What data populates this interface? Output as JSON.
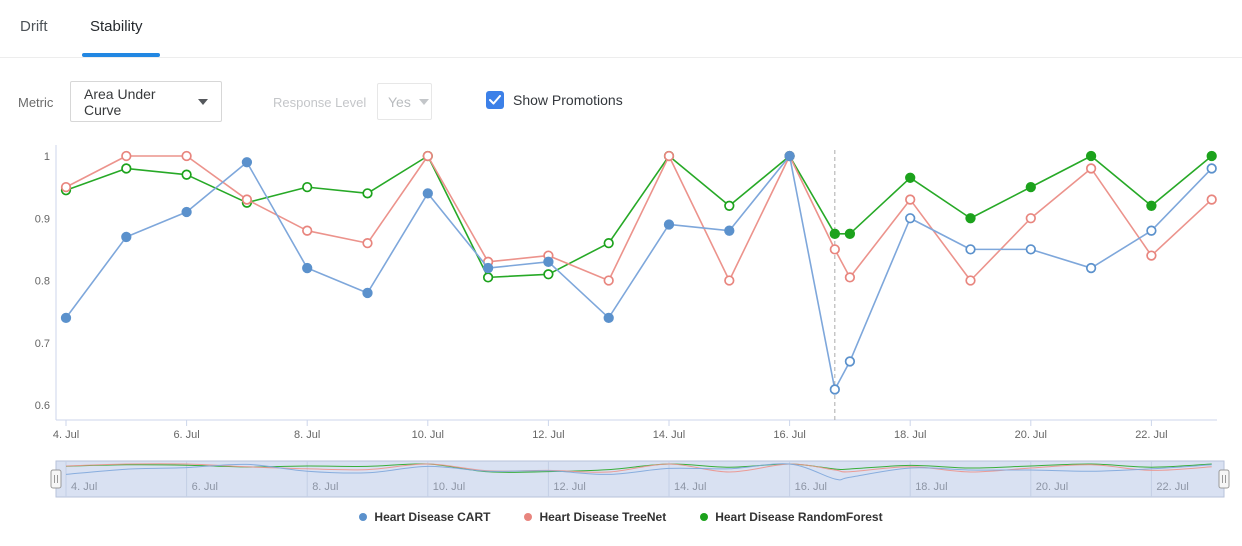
{
  "tabs": {
    "items": [
      {
        "label": "Drift",
        "active": false
      },
      {
        "label": "Stability",
        "active": true
      }
    ]
  },
  "controls": {
    "metric_label": "Metric",
    "metric_value": "Area Under Curve",
    "response_level_label": "Response Level",
    "response_level_value": "Yes",
    "show_promotions_label": "Show Promotions",
    "show_promotions_checked": true
  },
  "colors": {
    "accent_tab": "#2287e2",
    "checkbox": "#3c80e8",
    "axis_line": "#ccd6eb",
    "axis_label": "#666666",
    "promotion_line": "#ababab",
    "navigator_bg": "#d9e1f2",
    "navigator_grid": "#c3cfe5",
    "navigator_border": "#b7c2da",
    "navigator_label": "#8d95a5",
    "handle_fill": "#f6f6f6",
    "handle_stroke": "#999999"
  },
  "chart_data": {
    "type": "line",
    "title": "",
    "xlabel": "",
    "ylabel": "",
    "grid": "none",
    "legend_position": "bottom",
    "x_unit": "day of July",
    "x_tick_days": [
      4,
      6,
      8,
      10,
      12,
      14,
      16,
      18,
      20,
      22
    ],
    "x_tick_labels": [
      "4. Jul",
      "6. Jul",
      "8. Jul",
      "10. Jul",
      "12. Jul",
      "14. Jul",
      "16. Jul",
      "18. Jul",
      "20. Jul",
      "22. Jul"
    ],
    "x_range": [
      3.8,
      23.1
    ],
    "y_tick_values": [
      1,
      0.9,
      0.8,
      0.7,
      0.6
    ],
    "y_tick_labels": [
      "1",
      "0.9",
      "0.8",
      "0.7",
      "0.6"
    ],
    "y_range": [
      0.6,
      1.0
    ],
    "promotion_line_day": 16.75,
    "has_navigator": true,
    "series": [
      {
        "name": "Heart Disease CART",
        "marker_color": "#5b91cc",
        "line_color": "#7ea7db",
        "points": [
          {
            "day": 4,
            "value": 0.74,
            "filled": true
          },
          {
            "day": 5,
            "value": 0.87,
            "filled": true
          },
          {
            "day": 6,
            "value": 0.91,
            "filled": true
          },
          {
            "day": 7,
            "value": 0.99,
            "filled": true
          },
          {
            "day": 8,
            "value": 0.82,
            "filled": true
          },
          {
            "day": 9,
            "value": 0.78,
            "filled": true
          },
          {
            "day": 10,
            "value": 0.94,
            "filled": true
          },
          {
            "day": 11,
            "value": 0.82,
            "filled": true
          },
          {
            "day": 12,
            "value": 0.83,
            "filled": true
          },
          {
            "day": 13,
            "value": 0.74,
            "filled": true
          },
          {
            "day": 14,
            "value": 0.89,
            "filled": true
          },
          {
            "day": 15,
            "value": 0.88,
            "filled": true
          },
          {
            "day": 16,
            "value": 1.0,
            "filled": true
          },
          {
            "day": 16.75,
            "value": 0.625,
            "filled": false
          },
          {
            "day": 17,
            "value": 0.67,
            "filled": false
          },
          {
            "day": 18,
            "value": 0.9,
            "filled": false
          },
          {
            "day": 19,
            "value": 0.85,
            "filled": false
          },
          {
            "day": 20,
            "value": 0.85,
            "filled": false
          },
          {
            "day": 21,
            "value": 0.82,
            "filled": false
          },
          {
            "day": 22,
            "value": 0.88,
            "filled": false
          },
          {
            "day": 23,
            "value": 0.98,
            "filled": false
          }
        ]
      },
      {
        "name": "Heart Disease TreeNet",
        "marker_color": "#e8857e",
        "line_color": "#ec938c",
        "points": [
          {
            "day": 4,
            "value": 0.95,
            "filled": false
          },
          {
            "day": 5,
            "value": 1.0,
            "filled": false
          },
          {
            "day": 6,
            "value": 1.0,
            "filled": false
          },
          {
            "day": 7,
            "value": 0.93,
            "filled": false
          },
          {
            "day": 8,
            "value": 0.88,
            "filled": false
          },
          {
            "day": 9,
            "value": 0.86,
            "filled": false
          },
          {
            "day": 10,
            "value": 1.0,
            "filled": false
          },
          {
            "day": 11,
            "value": 0.83,
            "filled": false
          },
          {
            "day": 12,
            "value": 0.84,
            "filled": false
          },
          {
            "day": 13,
            "value": 0.8,
            "filled": false
          },
          {
            "day": 14,
            "value": 1.0,
            "filled": false
          },
          {
            "day": 15,
            "value": 0.8,
            "filled": false
          },
          {
            "day": 16,
            "value": 1.0,
            "filled": false
          },
          {
            "day": 16.75,
            "value": 0.85,
            "filled": false
          },
          {
            "day": 17,
            "value": 0.805,
            "filled": false
          },
          {
            "day": 18,
            "value": 0.93,
            "filled": false
          },
          {
            "day": 19,
            "value": 0.8,
            "filled": false
          },
          {
            "day": 20,
            "value": 0.9,
            "filled": false
          },
          {
            "day": 21,
            "value": 0.98,
            "filled": false
          },
          {
            "day": 22,
            "value": 0.84,
            "filled": false
          },
          {
            "day": 23,
            "value": 0.93,
            "filled": false
          }
        ]
      },
      {
        "name": "Heart Disease RandomForest",
        "marker_color": "#1ca21c",
        "line_color": "#27a927",
        "points": [
          {
            "day": 4,
            "value": 0.945,
            "filled": false
          },
          {
            "day": 5,
            "value": 0.98,
            "filled": false
          },
          {
            "day": 6,
            "value": 0.97,
            "filled": false
          },
          {
            "day": 7,
            "value": 0.925,
            "filled": false
          },
          {
            "day": 8,
            "value": 0.95,
            "filled": false
          },
          {
            "day": 9,
            "value": 0.94,
            "filled": false
          },
          {
            "day": 10,
            "value": 1.0,
            "filled": false
          },
          {
            "day": 11,
            "value": 0.805,
            "filled": false
          },
          {
            "day": 12,
            "value": 0.81,
            "filled": false
          },
          {
            "day": 13,
            "value": 0.86,
            "filled": false
          },
          {
            "day": 14,
            "value": 1.0,
            "filled": false
          },
          {
            "day": 15,
            "value": 0.92,
            "filled": false
          },
          {
            "day": 16,
            "value": 1.0,
            "filled": false
          },
          {
            "day": 16.75,
            "value": 0.875,
            "filled": true
          },
          {
            "day": 17,
            "value": 0.875,
            "filled": true
          },
          {
            "day": 18,
            "value": 0.965,
            "filled": true
          },
          {
            "day": 19,
            "value": 0.9,
            "filled": true
          },
          {
            "day": 20,
            "value": 0.95,
            "filled": true
          },
          {
            "day": 21,
            "value": 1.0,
            "filled": true
          },
          {
            "day": 22,
            "value": 0.92,
            "filled": true
          },
          {
            "day": 23,
            "value": 1.0,
            "filled": true
          }
        ]
      }
    ]
  }
}
